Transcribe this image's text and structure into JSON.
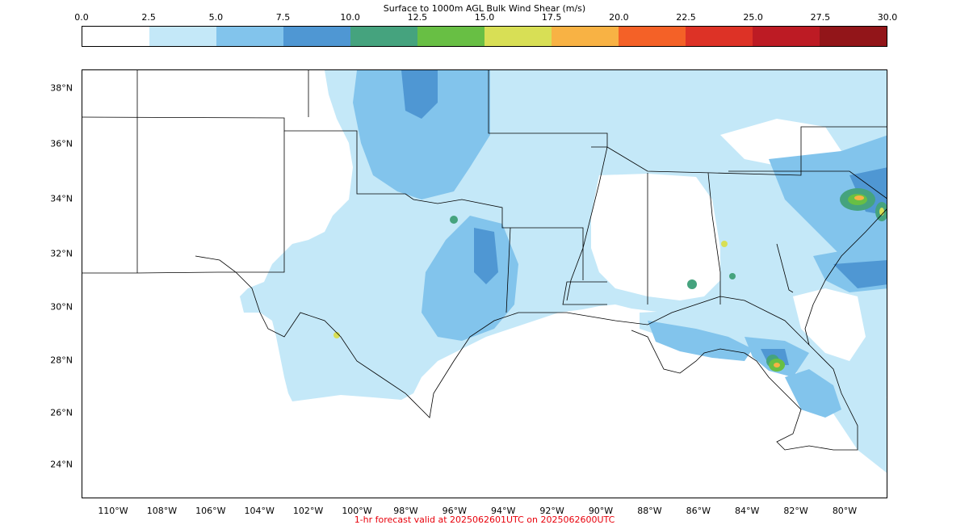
{
  "title": "Surface to 1000m AGL Bulk Wind Shear (m/s)",
  "colorbar": {
    "ticks": [
      "0.0",
      "2.5",
      "5.0",
      "7.5",
      "10.0",
      "12.5",
      "15.0",
      "17.5",
      "20.0",
      "22.5",
      "25.0",
      "27.5",
      "30.0"
    ],
    "colors": [
      "#ffffff",
      "#c4e8f8",
      "#82c4ec",
      "#4f97d3",
      "#45a37e",
      "#68bf44",
      "#d8df55",
      "#f8b244",
      "#f46127",
      "#dd3226",
      "#bd1b24",
      "#921519"
    ]
  },
  "latitude_labels": [
    "38°N",
    "36°N",
    "34°N",
    "32°N",
    "30°N",
    "28°N",
    "26°N",
    "24°N"
  ],
  "longitude_labels": [
    "110°W",
    "108°W",
    "106°W",
    "104°W",
    "102°W",
    "100°W",
    "98°W",
    "96°W",
    "94°W",
    "92°W",
    "90°W",
    "88°W",
    "86°W",
    "84°W",
    "82°W",
    "80°W"
  ],
  "footer": "1-hr forecast valid at 2025062601UTC on 2025062600UTC"
}
